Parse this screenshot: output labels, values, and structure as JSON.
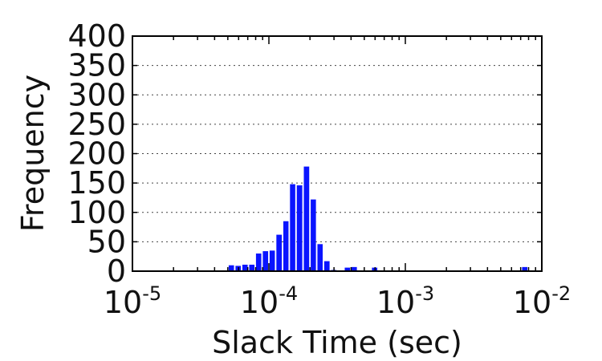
{
  "chart_data": {
    "type": "bar",
    "xlabel": "Slack Time (sec)",
    "ylabel": "Frequency",
    "x_scale": "log",
    "xlim": [
      1e-05,
      0.01
    ],
    "ylim": [
      0,
      400
    ],
    "grid": "y-dotted",
    "bar_color": "#0a14ff",
    "yticks": [
      0,
      50,
      100,
      150,
      200,
      250,
      300,
      350,
      400
    ],
    "xticks": [
      {
        "value": 1e-05,
        "base": "10",
        "exp": "-5"
      },
      {
        "value": 0.0001,
        "base": "10",
        "exp": "-4"
      },
      {
        "value": 0.001,
        "base": "10",
        "exp": "-3"
      },
      {
        "value": 0.01,
        "base": "10",
        "exp": "-2"
      }
    ],
    "bin_edges": [
      5.01e-05,
      5.62e-05,
      6.31e-05,
      7.08e-05,
      7.94e-05,
      8.91e-05,
      0.0001,
      0.000112,
      0.000126,
      0.000141,
      0.000158,
      0.000178,
      0.0002,
      0.000224,
      0.000251,
      0.000282,
      0.000316,
      0.000355,
      0.000398,
      0.000447,
      0.000501,
      0.000562,
      0.000631,
      0.000708,
      0.000794,
      0.000891,
      0.001,
      0.00112,
      0.00126,
      0.00141,
      0.00158,
      0.00178,
      0.002,
      0.00224,
      0.00251,
      0.00282,
      0.00316,
      0.00355,
      0.00398,
      0.00447,
      0.00501,
      0.00562,
      0.00631,
      0.00708,
      0.00794
    ],
    "values": [
      10,
      9,
      11,
      11,
      30,
      34,
      35,
      62,
      85,
      148,
      146,
      178,
      122,
      46,
      17,
      2,
      0,
      6,
      7,
      1,
      0,
      6,
      1,
      0,
      0,
      0,
      0,
      0,
      0,
      0,
      0,
      0,
      0,
      0,
      0,
      0,
      0,
      0,
      0,
      0,
      0,
      0,
      0,
      7
    ]
  }
}
